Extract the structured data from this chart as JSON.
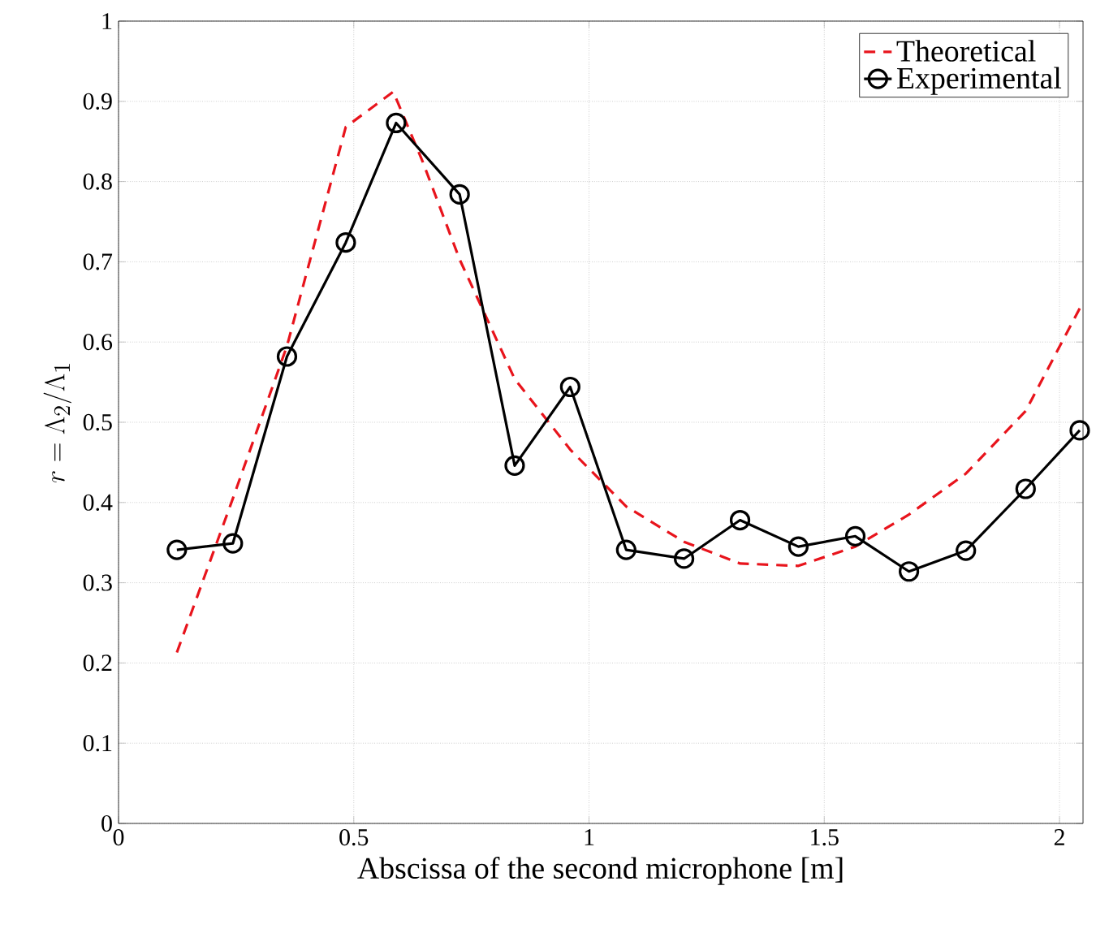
{
  "chart_data": {
    "type": "line",
    "xlabel": "Abscissa of the second microphone [m]",
    "ylabel": "r = \\Lambda_2/\\Lambda_1",
    "xlim": [
      0,
      2.05
    ],
    "ylim": [
      0,
      1
    ],
    "xticks": [
      0,
      0.5,
      1,
      1.5,
      2
    ],
    "yticks": [
      0,
      0.1,
      0.2,
      0.3,
      0.4,
      0.5,
      0.6,
      0.7,
      0.8,
      0.9,
      1
    ],
    "grid": true,
    "legend": "top right",
    "series": [
      {
        "name": "Theoretical",
        "color": "#e8141c",
        "line_style": "dashed",
        "marker": "none",
        "x": [
          0.124,
          0.243,
          0.358,
          0.483,
          0.584,
          0.647,
          0.725,
          0.842,
          0.96,
          1.079,
          1.202,
          1.321,
          1.445,
          1.566,
          1.68,
          1.801,
          1.928,
          2.043
        ],
        "values": [
          0.213,
          0.405,
          0.595,
          0.868,
          0.912,
          0.824,
          0.703,
          0.554,
          0.466,
          0.395,
          0.351,
          0.324,
          0.321,
          0.345,
          0.385,
          0.436,
          0.514,
          0.642
        ]
      },
      {
        "name": "Experimental",
        "color": "#000000",
        "line_style": "solid",
        "marker": "circle",
        "x": [
          0.124,
          0.243,
          0.358,
          0.483,
          0.59,
          0.725,
          0.842,
          0.96,
          1.079,
          1.202,
          1.321,
          1.445,
          1.566,
          1.68,
          1.801,
          1.928,
          2.043
        ],
        "values": [
          0.341,
          0.349,
          0.582,
          0.724,
          0.873,
          0.784,
          0.446,
          0.544,
          0.341,
          0.33,
          0.378,
          0.345,
          0.358,
          0.314,
          0.34,
          0.417,
          0.49
        ]
      }
    ]
  }
}
